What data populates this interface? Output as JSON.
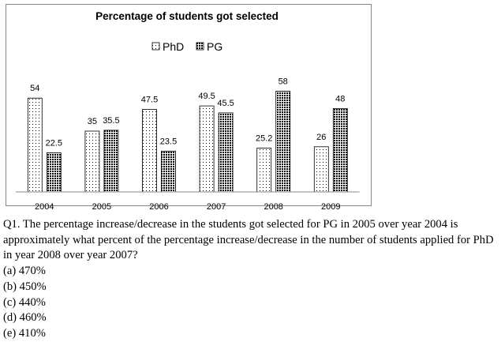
{
  "chart_data": {
    "type": "bar",
    "title": "Percentage of students got selected",
    "categories": [
      "2004",
      "2005",
      "2006",
      "2007",
      "2008",
      "2009"
    ],
    "series": [
      {
        "name": "PhD",
        "color": "#000000",
        "values": [
          54,
          35,
          47.5,
          49.5,
          25.2,
          26
        ]
      },
      {
        "name": "PG",
        "color": "#000000",
        "values": [
          22.5,
          35.5,
          23.5,
          45.5,
          58,
          48
        ]
      }
    ]
  },
  "question": {
    "text": "Q1. The percentage increase/decrease in the students got selected for PG in 2005 over year 2004 is approximately what percent of the percentage increase/decrease in the number of students applied for PhD in year 2008 over year 2007?",
    "options": [
      "(a) 470%",
      "(b) 450%",
      "(c) 440%",
      "(d) 460%",
      "(e) 410%"
    ]
  }
}
